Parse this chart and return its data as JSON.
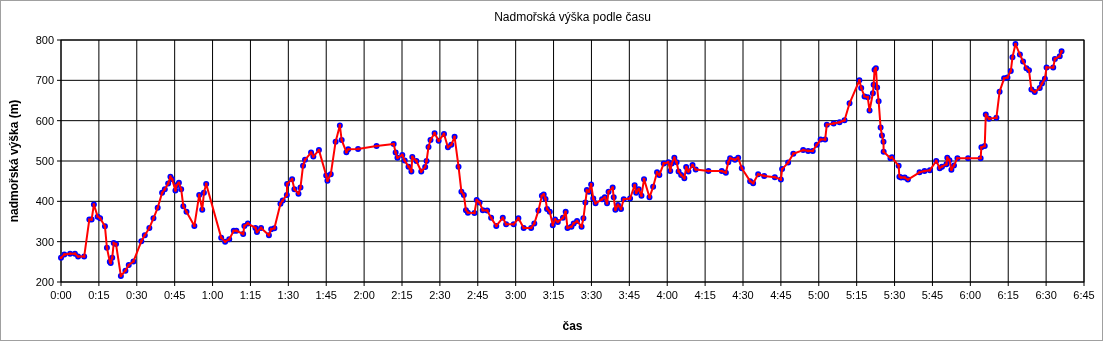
{
  "chart_data": {
    "type": "line",
    "title": "Nadmořská výška podle času",
    "xlabel": "čas",
    "ylabel": "nadmořská výška (m)",
    "xlim": [
      0,
      6.75
    ],
    "ylim": [
      200,
      800
    ],
    "xticks": [
      {
        "value": 0,
        "label": "0:00"
      },
      {
        "value": 0.25,
        "label": "0:15"
      },
      {
        "value": 0.5,
        "label": "0:30"
      },
      {
        "value": 0.75,
        "label": "0:45"
      },
      {
        "value": 1,
        "label": "1:00"
      },
      {
        "value": 1.25,
        "label": "1:15"
      },
      {
        "value": 1.5,
        "label": "1:30"
      },
      {
        "value": 1.75,
        "label": "1:45"
      },
      {
        "value": 2,
        "label": "2:00"
      },
      {
        "value": 2.25,
        "label": "2:15"
      },
      {
        "value": 2.5,
        "label": "2:30"
      },
      {
        "value": 2.75,
        "label": "2:45"
      },
      {
        "value": 3,
        "label": "3:00"
      },
      {
        "value": 3.25,
        "label": "3:15"
      },
      {
        "value": 3.5,
        "label": "3:30"
      },
      {
        "value": 3.75,
        "label": "3:45"
      },
      {
        "value": 4,
        "label": "4:00"
      },
      {
        "value": 4.25,
        "label": "4:15"
      },
      {
        "value": 4.5,
        "label": "4:30"
      },
      {
        "value": 4.75,
        "label": "4:45"
      },
      {
        "value": 5,
        "label": "5:00"
      },
      {
        "value": 5.25,
        "label": "5:15"
      },
      {
        "value": 5.5,
        "label": "5:30"
      },
      {
        "value": 5.75,
        "label": "5:45"
      },
      {
        "value": 6,
        "label": "6:00"
      },
      {
        "value": 6.25,
        "label": "6:15"
      },
      {
        "value": 6.5,
        "label": "6:30"
      },
      {
        "value": 6.75,
        "label": "6:45"
      }
    ],
    "yticks": [
      200,
      300,
      400,
      500,
      600,
      700,
      800
    ],
    "grid": true,
    "marker": "circle",
    "line_style": "solid",
    "series": [
      {
        "color": "#ff0000",
        "x": [
          0,
          0.022,
          0.06,
          0.092,
          0.113,
          0.153,
          0.187,
          0.202,
          0.217,
          0.242,
          0.258,
          0.29,
          0.303,
          0.322,
          0.328,
          0.338,
          0.348,
          0.363,
          0.395,
          0.425,
          0.447,
          0.478,
          0.53,
          0.553,
          0.583,
          0.61,
          0.638,
          0.667,
          0.685,
          0.707,
          0.722,
          0.733,
          0.755,
          0.763,
          0.778,
          0.793,
          0.807,
          0.828,
          0.88,
          0.912,
          0.932,
          0.943,
          0.958,
          1.057,
          1.083,
          1.11,
          1.14,
          1.157,
          1.202,
          1.21,
          1.233,
          1.283,
          1.293,
          1.32,
          1.372,
          1.387,
          1.408,
          1.448,
          1.463,
          1.49,
          1.492,
          1.525,
          1.54,
          1.567,
          1.58,
          1.597,
          1.61,
          1.65,
          1.665,
          1.702,
          1.75,
          1.758,
          1.78,
          1.812,
          1.84,
          1.852,
          1.883,
          1.895,
          1.96,
          2.082,
          2.195,
          2.208,
          2.22,
          2.252,
          2.268,
          2.293,
          2.312,
          2.318,
          2.345,
          2.377,
          2.403,
          2.412,
          2.425,
          2.438,
          2.465,
          2.492,
          2.527,
          2.553,
          2.575,
          2.597,
          2.623,
          2.642,
          2.658,
          2.672,
          2.685,
          2.728,
          2.743,
          2.762,
          2.783,
          2.812,
          2.838,
          2.872,
          2.915,
          2.937,
          2.987,
          3.018,
          3.053,
          3.102,
          3.123,
          3.15,
          3.173,
          3.185,
          3.197,
          3.207,
          3.225,
          3.245,
          3.26,
          3.278,
          3.312,
          3.33,
          3.342,
          3.368,
          3.383,
          3.405,
          3.435,
          3.447,
          3.46,
          3.47,
          3.483,
          3.498,
          3.512,
          3.527,
          3.57,
          3.588,
          3.603,
          3.613,
          3.64,
          3.647,
          3.658,
          3.675,
          3.695,
          3.713,
          3.755,
          3.785,
          3.795,
          3.812,
          3.83,
          3.847,
          3.883,
          3.907,
          3.933,
          3.948,
          3.977,
          4.008,
          4.02,
          4.03,
          4.047,
          4.062,
          4.075,
          4.092,
          4.113,
          4.125,
          4.14,
          4.167,
          4.188,
          4.272,
          4.36,
          4.387,
          4.403,
          4.415,
          4.447,
          4.468,
          4.492,
          4.547,
          4.567,
          4.6,
          4.64,
          4.71,
          4.75,
          4.758,
          4.798,
          4.832,
          4.897,
          4.93,
          4.96,
          4.987,
          5.012,
          5.042,
          5.053,
          5.098,
          5.137,
          5.17,
          5.203,
          5.268,
          5.28,
          5.302,
          5.323,
          5.335,
          5.357,
          5.362,
          5.368,
          5.377,
          5.385,
          5.395,
          5.408,
          5.417,
          5.427,
          5.428,
          5.473,
          5.483,
          5.527,
          5.532,
          5.543,
          5.567,
          5.588,
          5.665,
          5.698,
          5.733,
          5.775,
          5.798,
          5.813,
          5.842,
          5.848,
          5.862,
          5.875,
          5.892,
          5.915,
          5.985,
          6.068,
          6.073,
          6.095,
          6.102,
          6.123,
          6.172,
          6.193,
          6.223,
          6.245,
          6.267,
          6.278,
          6.298,
          6.327,
          6.348,
          6.37,
          6.387,
          6.403,
          6.425,
          6.458,
          6.473,
          6.492,
          6.503,
          6.547,
          6.558,
          6.59,
          6.602
        ],
        "values": [
          260,
          268,
          270,
          270,
          263,
          263,
          355,
          355,
          392,
          362,
          358,
          338,
          285,
          250,
          247,
          260,
          297,
          294,
          215,
          228,
          242,
          251,
          301,
          316,
          334,
          358,
          384,
          421,
          430,
          444,
          461,
          455,
          427,
          440,
          446,
          430,
          388,
          374,
          339,
          416,
          379,
          421,
          443,
          310,
          300,
          306,
          327,
          327,
          319,
          339,
          345,
          334,
          324,
          334,
          316,
          331,
          333,
          394,
          402,
          416,
          443,
          455,
          430,
          419,
          434,
          488,
          503,
          521,
          511,
          527,
          464,
          451,
          467,
          548,
          588,
          552,
          522,
          529,
          530,
          537,
          542,
          521,
          508,
          515,
          501,
          486,
          474,
          510,
          500,
          474,
          485,
          500,
          535,
          552,
          569,
          550,
          567,
          534,
          540,
          560,
          486,
          424,
          416,
          378,
          372,
          371,
          403,
          397,
          378,
          377,
          359,
          339,
          359,
          343,
          343,
          358,
          334,
          334,
          345,
          377,
          414,
          417,
          406,
          381,
          374,
          341,
          355,
          349,
          359,
          374,
          334,
          337,
          345,
          351,
          337,
          358,
          397,
          428,
          424,
          442,
          407,
          395,
          405,
          410,
          395,
          424,
          434,
          410,
          379,
          391,
          381,
          405,
          407,
          440,
          421,
          430,
          414,
          455,
          410,
          436,
          472,
          465,
          494,
          497,
          475,
          494,
          508,
          497,
          474,
          465,
          457,
          485,
          474,
          490,
          479,
          475,
          475,
          471,
          497,
          507,
          503,
          508,
          482,
          450,
          445,
          467,
          463,
          460,
          454,
          480,
          496,
          518,
          527,
          525,
          525,
          540,
          553,
          553,
          590,
          593,
          596,
          601,
          643,
          700,
          681,
          660,
          658,
          625,
          668,
          689,
          726,
          730,
          682,
          648,
          583,
          563,
          548,
          523,
          507,
          509,
          488,
          461,
          459,
          459,
          454,
          472,
          475,
          477,
          500,
          482,
          486,
          492,
          508,
          502,
          478,
          489,
          507,
          507,
          507,
          534,
          537,
          615,
          605,
          607,
          672,
          705,
          707,
          723,
          757,
          790,
          764,
          747,
          730,
          725,
          677,
          671,
          681,
          692,
          704,
          732,
          732,
          753,
          760,
          772
        ]
      }
    ]
  }
}
